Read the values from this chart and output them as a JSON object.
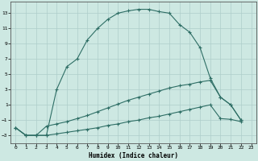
{
  "xlabel": "Humidex (Indice chaleur)",
  "background_color": "#cde8e2",
  "line_color": "#2e6e65",
  "grid_color": "#aececa",
  "xlim": [
    -0.5,
    23.5
  ],
  "ylim": [
    -4,
    14.5
  ],
  "xticks": [
    0,
    1,
    2,
    3,
    4,
    5,
    6,
    7,
    8,
    9,
    10,
    11,
    12,
    13,
    14,
    15,
    16,
    17,
    18,
    19,
    20,
    21,
    22,
    23
  ],
  "yticks": [
    -3,
    -1,
    1,
    3,
    5,
    7,
    9,
    11,
    13
  ],
  "line1_x": [
    0,
    1,
    2,
    3,
    4,
    5,
    6,
    7,
    8,
    9,
    10,
    11,
    12,
    13,
    14,
    15,
    16,
    17,
    18,
    19,
    20,
    21,
    22
  ],
  "line1_y": [
    -2,
    -3,
    -3,
    -3,
    3,
    6,
    7,
    9.5,
    11,
    12.2,
    13.0,
    13.3,
    13.5,
    13.5,
    13.2,
    13.0,
    11.5,
    10.5,
    8.5,
    4.5,
    2,
    1,
    -1
  ],
  "line2_x": [
    0,
    1,
    2,
    3,
    4,
    5,
    6,
    7,
    8,
    9,
    10,
    11,
    12,
    13,
    14,
    15,
    16,
    17,
    18,
    19,
    20,
    21,
    22
  ],
  "line2_y": [
    -2,
    -3,
    -3,
    -1.8,
    -1.5,
    -1.2,
    -0.8,
    -0.4,
    0.1,
    0.6,
    1.1,
    1.6,
    2.0,
    2.4,
    2.8,
    3.2,
    3.5,
    3.7,
    4.0,
    4.2,
    2.0,
    1.0,
    -1.0
  ],
  "line3_x": [
    0,
    1,
    2,
    3,
    4,
    5,
    6,
    7,
    8,
    9,
    10,
    11,
    12,
    13,
    14,
    15,
    16,
    17,
    18,
    19,
    20,
    21,
    22
  ],
  "line3_y": [
    -2,
    -3,
    -3,
    -3,
    -2.8,
    -2.6,
    -2.4,
    -2.2,
    -2.0,
    -1.7,
    -1.5,
    -1.2,
    -1.0,
    -0.7,
    -0.5,
    -0.2,
    0.1,
    0.4,
    0.7,
    1.0,
    -0.8,
    -0.9,
    -1.2
  ]
}
